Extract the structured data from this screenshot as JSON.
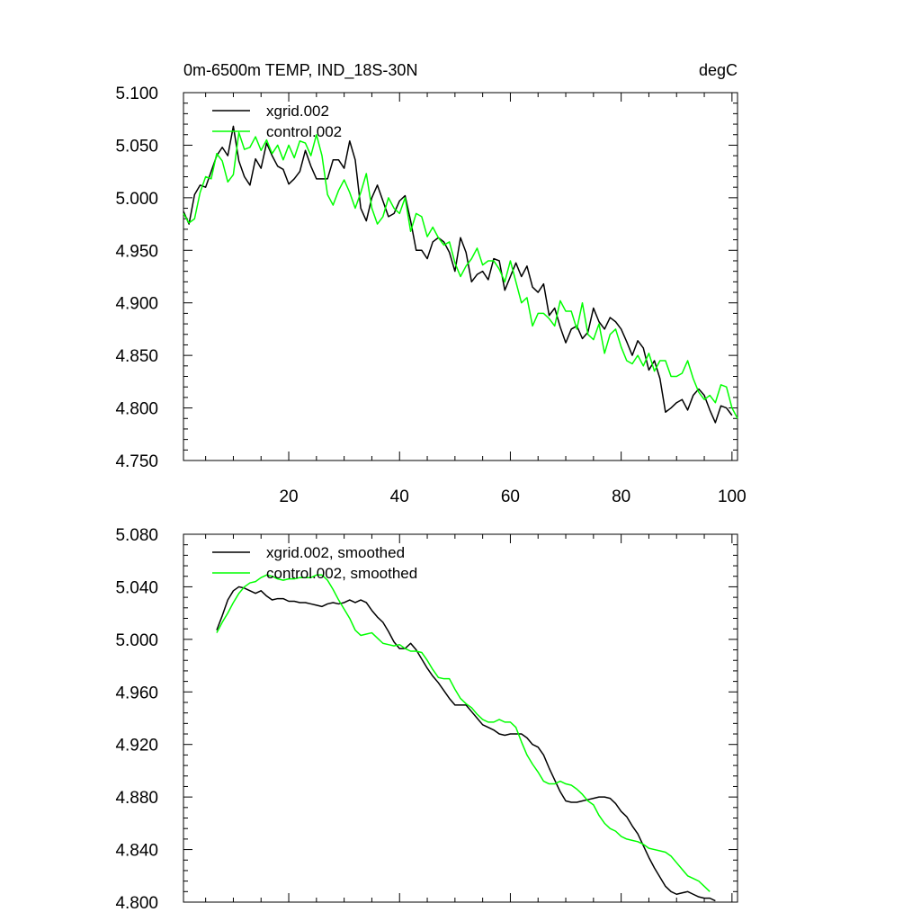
{
  "chart_data": [
    {
      "type": "line",
      "title_left": "0m-6500m TEMP, IND_18S-30N",
      "title_right": "degC",
      "xlabel": "",
      "ylabel": "",
      "xlim": [
        1,
        101
      ],
      "ylim": [
        4.75,
        5.1
      ],
      "x_ticks": [
        "20",
        "40",
        "60",
        "80",
        "100"
      ],
      "y_ticks": [
        "5.100",
        "5.050",
        "5.000",
        "4.950",
        "4.900",
        "4.850",
        "4.800",
        "4.750"
      ],
      "grid": false,
      "legend_position": "top-left",
      "series": [
        {
          "name": "xgrid.002",
          "color": "#000000",
          "x_start": 1,
          "values": [
            4.987,
            4.975,
            5.003,
            5.012,
            5.01,
            5.025,
            5.04,
            5.048,
            5.04,
            5.068,
            5.035,
            5.02,
            5.012,
            5.037,
            5.028,
            5.052,
            5.04,
            5.03,
            5.027,
            5.013,
            5.018,
            5.025,
            5.045,
            5.03,
            5.018,
            5.018,
            5.018,
            5.036,
            5.036,
            5.028,
            5.054,
            5.036,
            4.99,
            4.978,
            5.0,
            5.012,
            4.997,
            4.982,
            4.985,
            4.997,
            5.002,
            4.978,
            4.95,
            4.95,
            4.942,
            4.958,
            4.962,
            4.958,
            4.948,
            4.93,
            4.962,
            4.948,
            4.92,
            4.927,
            4.93,
            4.922,
            4.942,
            4.94,
            4.912,
            4.925,
            4.938,
            4.925,
            4.935,
            4.915,
            4.91,
            4.918,
            4.888,
            4.895,
            4.877,
            4.862,
            4.875,
            4.878,
            4.866,
            4.872,
            4.895,
            4.882,
            4.875,
            4.886,
            4.882,
            4.875,
            4.863,
            4.85,
            4.864,
            4.857,
            4.836,
            4.845,
            4.828,
            4.796,
            4.8,
            4.805,
            4.808,
            4.798,
            4.812,
            4.818,
            4.812,
            4.798,
            4.786,
            4.802,
            4.8,
            4.793
          ]
        },
        {
          "name": "control.002",
          "color": "#00ff00",
          "x_start": 1,
          "values": [
            4.985,
            4.976,
            4.98,
            5.005,
            5.02,
            5.018,
            5.042,
            5.035,
            5.015,
            5.022,
            5.062,
            5.046,
            5.048,
            5.058,
            5.045,
            5.055,
            5.042,
            5.05,
            5.036,
            5.05,
            5.038,
            5.054,
            5.052,
            5.04,
            5.06,
            5.04,
            5.003,
            4.993,
            5.007,
            5.017,
            5.005,
            4.99,
            5.005,
            5.023,
            4.99,
            4.975,
            4.982,
            5.0,
            4.99,
            4.985,
            5.0,
            4.968,
            4.985,
            4.982,
            4.963,
            4.972,
            4.962,
            4.955,
            4.958,
            4.938,
            4.925,
            4.935,
            4.942,
            4.952,
            4.936,
            4.94,
            4.94,
            4.932,
            4.92,
            4.94,
            4.92,
            4.9,
            4.905,
            4.878,
            4.89,
            4.89,
            4.885,
            4.878,
            4.902,
            4.892,
            4.892,
            4.875,
            4.9,
            4.87,
            4.865,
            4.88,
            4.852,
            4.87,
            4.875,
            4.858,
            4.845,
            4.842,
            4.85,
            4.84,
            4.852,
            4.835,
            4.845,
            4.845,
            4.83,
            4.83,
            4.833,
            4.845,
            4.828,
            4.815,
            4.808,
            4.812,
            4.805,
            4.822,
            4.82,
            4.8,
            4.79
          ]
        }
      ]
    },
    {
      "type": "line",
      "xlabel": "",
      "ylabel": "",
      "xlim": [
        1,
        101
      ],
      "ylim": [
        4.8,
        5.08
      ],
      "x_ticks": [],
      "y_ticks": [
        "5.080",
        "5.040",
        "5.000",
        "4.960",
        "4.920",
        "4.880",
        "4.840",
        "4.800"
      ],
      "grid": false,
      "legend_position": "top-left",
      "series": [
        {
          "name": "xgrid.002, smoothed",
          "color": "#000000",
          "x_start": 7,
          "values": [
            5.007,
            5.018,
            5.03,
            5.037,
            5.04,
            5.039,
            5.037,
            5.035,
            5.037,
            5.033,
            5.03,
            5.031,
            5.031,
            5.029,
            5.029,
            5.028,
            5.028,
            5.027,
            5.026,
            5.025,
            5.027,
            5.028,
            5.027,
            5.028,
            5.03,
            5.028,
            5.03,
            5.028,
            5.022,
            5.017,
            5.013,
            5.006,
            4.998,
            4.993,
            4.993,
            4.997,
            4.992,
            4.985,
            4.978,
            4.972,
            4.967,
            4.961,
            4.955,
            4.95,
            4.95,
            4.95,
            4.945,
            4.94,
            4.935,
            4.933,
            4.931,
            4.928,
            4.927,
            4.928,
            4.928,
            4.928,
            4.925,
            4.92,
            4.918,
            4.912,
            4.902,
            4.893,
            4.884,
            4.877,
            4.876,
            4.876,
            4.877,
            4.878,
            4.879,
            4.88,
            4.88,
            4.879,
            4.875,
            4.869,
            4.865,
            4.858,
            4.852,
            4.843,
            4.834,
            4.826,
            4.819,
            4.812,
            4.808,
            4.806,
            4.807,
            4.808,
            4.806,
            4.804,
            4.803,
            4.803,
            4.801
          ]
        },
        {
          "name": "control.002, smoothed",
          "color": "#00ff00",
          "x_start": 7,
          "values": [
            5.005,
            5.013,
            5.02,
            5.028,
            5.035,
            5.04,
            5.043,
            5.044,
            5.047,
            5.049,
            5.048,
            5.046,
            5.045,
            5.046,
            5.046,
            5.047,
            5.047,
            5.047,
            5.049,
            5.049,
            5.045,
            5.038,
            5.03,
            5.023,
            5.016,
            5.007,
            5.003,
            5.004,
            5.005,
            5.001,
            4.997,
            4.996,
            4.995,
            4.996,
            4.993,
            4.991,
            4.991,
            4.99,
            4.984,
            4.977,
            4.971,
            4.97,
            4.97,
            4.962,
            4.955,
            4.951,
            4.948,
            4.943,
            4.939,
            4.937,
            4.937,
            4.939,
            4.937,
            4.937,
            4.933,
            4.922,
            4.912,
            4.905,
            4.899,
            4.892,
            4.89,
            4.89,
            4.892,
            4.89,
            4.889,
            4.886,
            4.882,
            4.877,
            4.874,
            4.866,
            4.86,
            4.856,
            4.854,
            4.85,
            4.848,
            4.847,
            4.846,
            4.844,
            4.841,
            4.84,
            4.839,
            4.838,
            4.835,
            4.83,
            4.825,
            4.82,
            4.818,
            4.816,
            4.812,
            4.808
          ]
        }
      ]
    }
  ]
}
